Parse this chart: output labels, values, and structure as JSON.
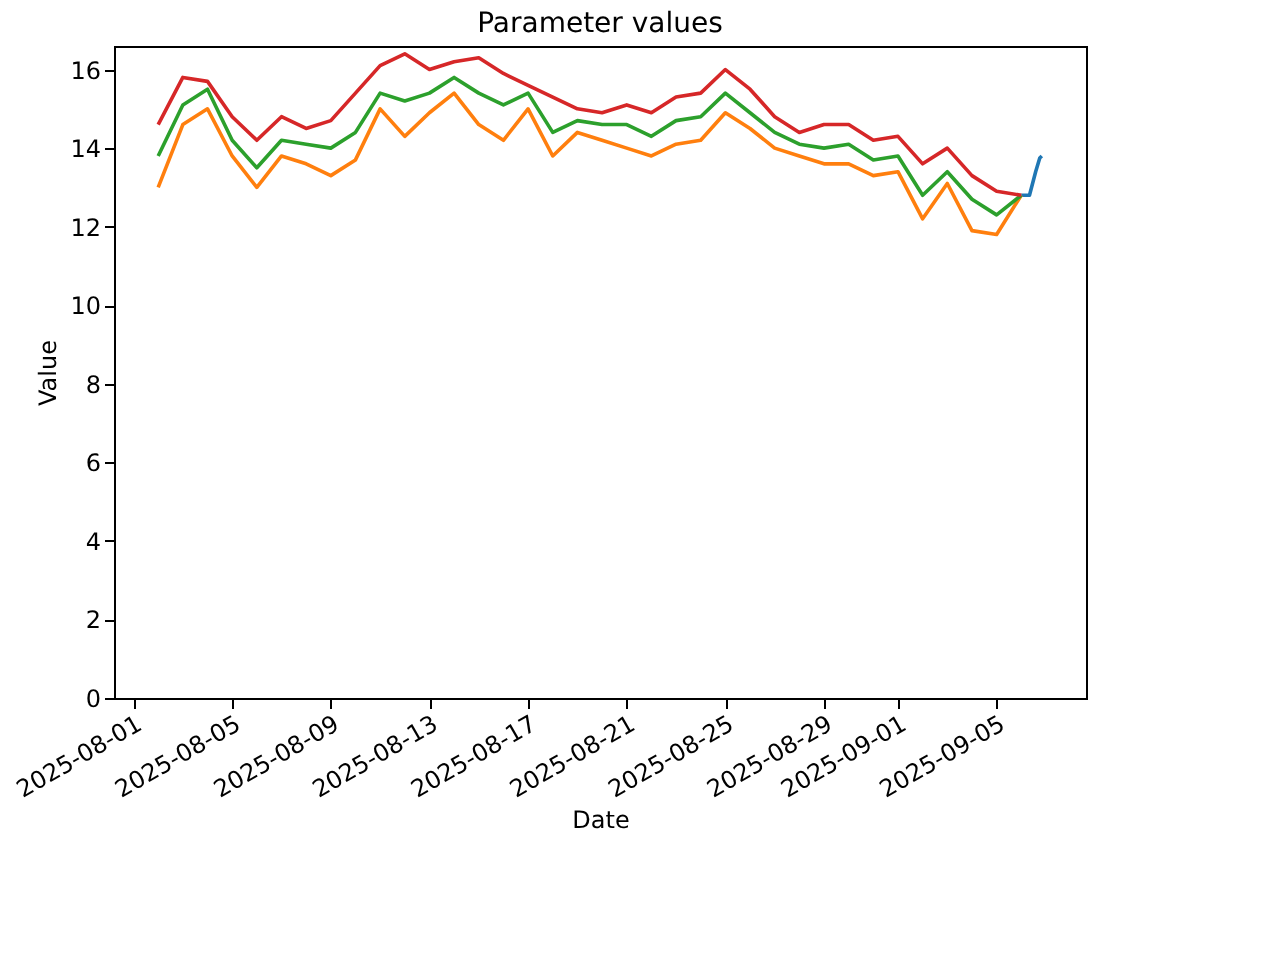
{
  "chart_data": {
    "type": "line",
    "title": "Parameter values",
    "xlabel": "Date",
    "ylabel": "Value",
    "xlim": [
      "2025-07-31T05:00",
      "2025-09-08T15:00"
    ],
    "xticks": [
      "2025-08-01",
      "2025-08-05",
      "2025-08-09",
      "2025-08-13",
      "2025-08-17",
      "2025-08-21",
      "2025-08-25",
      "2025-08-29",
      "2025-09-01",
      "2025-09-05"
    ],
    "ylim": [
      0,
      16.6
    ],
    "yticks": [
      0,
      2,
      4,
      6,
      8,
      10,
      12,
      14,
      16
    ],
    "grid": false,
    "marker": "none",
    "line_style": "solid",
    "x": [
      "2025-08-02",
      "2025-08-03",
      "2025-08-04",
      "2025-08-05",
      "2025-08-06",
      "2025-08-07",
      "2025-08-08",
      "2025-08-09",
      "2025-08-10",
      "2025-08-11",
      "2025-08-12",
      "2025-08-13",
      "2025-08-14",
      "2025-08-15",
      "2025-08-16",
      "2025-08-17",
      "2025-08-18",
      "2025-08-19",
      "2025-08-20",
      "2025-08-21",
      "2025-08-22",
      "2025-08-23",
      "2025-08-24",
      "2025-08-25",
      "2025-08-26",
      "2025-08-27",
      "2025-08-28",
      "2025-08-29",
      "2025-08-30",
      "2025-08-31",
      "2025-09-01",
      "2025-09-02",
      "2025-09-03",
      "2025-09-04",
      "2025-09-05",
      "2025-09-06"
    ],
    "series": [
      {
        "color": "#1f77b4",
        "x": [
          "2025-09-06T00:00",
          "2025-09-06T08:00",
          "2025-09-06T14:00",
          "2025-09-06T18:00",
          "2025-09-06T20:00"
        ],
        "values": [
          12.8,
          12.8,
          13.4,
          13.75,
          13.8
        ]
      },
      {
        "color": "#ff7f0e",
        "values": [
          13.0,
          14.6,
          15.0,
          13.8,
          13.0,
          13.8,
          13.6,
          13.3,
          13.7,
          15.0,
          14.3,
          14.9,
          15.4,
          14.6,
          14.2,
          15.0,
          13.8,
          14.4,
          14.2,
          14.0,
          13.8,
          14.1,
          14.2,
          14.9,
          14.5,
          14.0,
          13.8,
          13.6,
          13.6,
          13.3,
          13.4,
          12.2,
          13.1,
          11.9,
          11.8,
          12.8
        ]
      },
      {
        "color": "#2ca02c",
        "values": [
          13.8,
          15.1,
          15.5,
          14.2,
          13.5,
          14.2,
          14.1,
          14.0,
          14.4,
          15.4,
          15.2,
          15.4,
          15.8,
          15.4,
          15.1,
          15.4,
          14.4,
          14.7,
          14.6,
          14.6,
          14.3,
          14.7,
          14.8,
          15.4,
          14.9,
          14.4,
          14.1,
          14.0,
          14.1,
          13.7,
          13.8,
          12.8,
          13.4,
          12.7,
          12.3,
          12.8
        ]
      },
      {
        "color": "#d62728",
        "values": [
          14.6,
          15.8,
          15.7,
          14.8,
          14.2,
          14.8,
          14.5,
          14.7,
          15.4,
          16.1,
          16.4,
          16.0,
          16.2,
          16.3,
          15.9,
          15.6,
          15.3,
          15.0,
          14.9,
          15.1,
          14.9,
          15.3,
          15.4,
          16.0,
          15.5,
          14.8,
          14.4,
          14.6,
          14.6,
          14.2,
          14.3,
          13.6,
          14.0,
          13.3,
          12.9,
          12.8
        ]
      }
    ]
  }
}
